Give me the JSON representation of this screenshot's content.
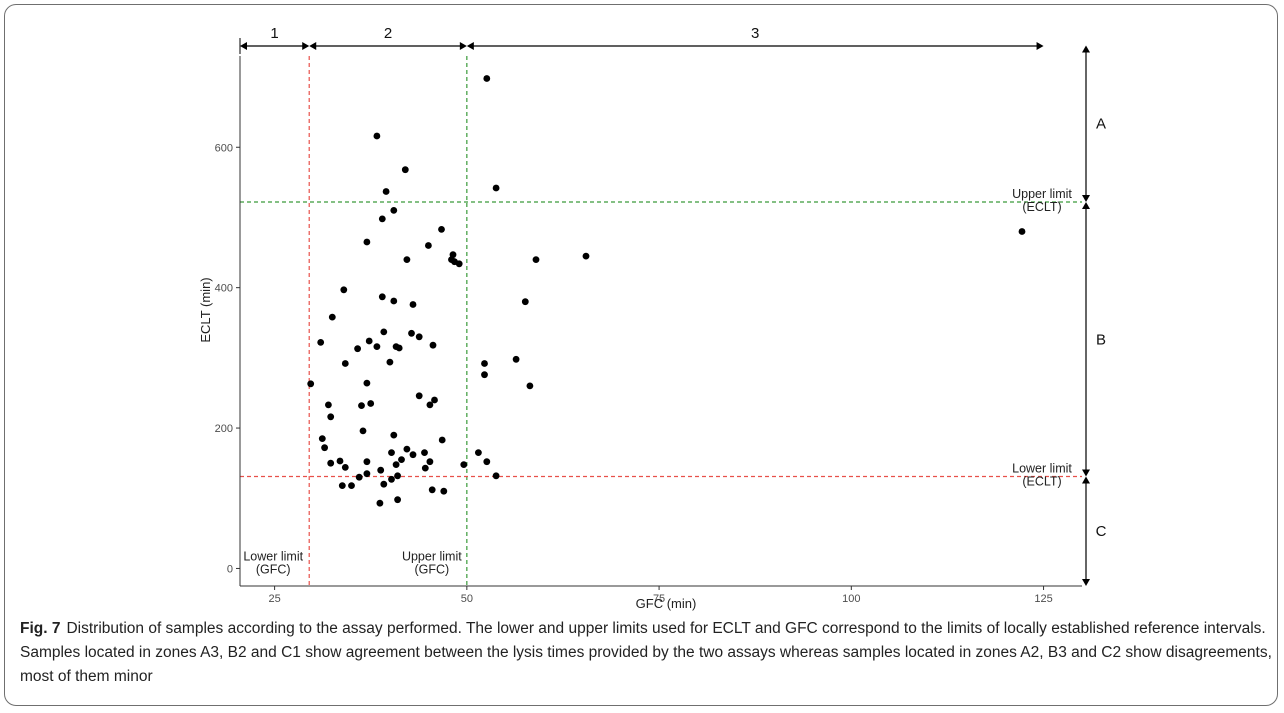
{
  "caption": {
    "label": "Fig. 7",
    "text": "Distribution of samples according to the assay performed. The lower and upper limits used for ECLT and GFC correspond to the limits of locally established reference intervals. Samples located in zones A3, B2 and C1 show agreement between the lysis times provided by the two assays whereas samples located in zones A2, B3 and C2 show disagreements, most of them minor"
  },
  "chart_data": {
    "type": "scatter",
    "xlabel": "GFC (min)",
    "ylabel": "ECLT (min)",
    "xlim": [
      20.5,
      130
    ],
    "ylim": [
      -25,
      730
    ],
    "x_ticks": [
      25,
      50,
      75,
      100,
      125
    ],
    "y_ticks": [
      0,
      200,
      400,
      600
    ],
    "grid": false,
    "colors": {
      "points": "#000000",
      "gfc_lower_line": "#e8504a",
      "gfc_upper_line": "#3a9a3a",
      "eclt_upper_line": "#3a9a3a",
      "eclt_lower_line": "#e8504a"
    },
    "reference_lines": {
      "gfc_lower": 29.5,
      "gfc_upper": 50,
      "eclt_upper": 522,
      "eclt_lower": 131
    },
    "annotations": [
      {
        "id": "gfc_lower",
        "line1": "Lower limit",
        "line2": "(GFC)"
      },
      {
        "id": "gfc_upper",
        "line1": "Upper limit",
        "line2": "(GFC)"
      },
      {
        "id": "eclt_upper",
        "line1": "Upper limit",
        "line2": "(ECLT)"
      },
      {
        "id": "eclt_lower",
        "line1": "Lower limit",
        "line2": "(ECLT)"
      }
    ],
    "zones_x": [
      {
        "label": "1",
        "from": 20.5,
        "to": 29.5
      },
      {
        "label": "2",
        "from": 29.5,
        "to": 50
      },
      {
        "label": "3",
        "from": 50,
        "to": 125
      }
    ],
    "zones_y": [
      {
        "label": "A",
        "from": 522,
        "to": 745
      },
      {
        "label": "B",
        "from": 131,
        "to": 522
      },
      {
        "label": "C",
        "from": -25,
        "to": 131
      }
    ],
    "points": [
      [
        29.7,
        263
      ],
      [
        31,
        322
      ],
      [
        31.2,
        185
      ],
      [
        31.5,
        172
      ],
      [
        32,
        233
      ],
      [
        32.3,
        216
      ],
      [
        32.3,
        150
      ],
      [
        32.5,
        358
      ],
      [
        33.5,
        153
      ],
      [
        33.8,
        118
      ],
      [
        34,
        397
      ],
      [
        34.2,
        292
      ],
      [
        34.2,
        144
      ],
      [
        35,
        118
      ],
      [
        35.8,
        313
      ],
      [
        36,
        130
      ],
      [
        36.3,
        232
      ],
      [
        36.5,
        196
      ],
      [
        37,
        465
      ],
      [
        37,
        264
      ],
      [
        37,
        152
      ],
      [
        37,
        135
      ],
      [
        37.3,
        324
      ],
      [
        37.5,
        235
      ],
      [
        38.3,
        616
      ],
      [
        38.3,
        316
      ],
      [
        38.7,
        93
      ],
      [
        38.8,
        140
      ],
      [
        39,
        498
      ],
      [
        39,
        387
      ],
      [
        39.2,
        337
      ],
      [
        39.2,
        120
      ],
      [
        39.5,
        537
      ],
      [
        40,
        294
      ],
      [
        40.2,
        127
      ],
      [
        40.2,
        165
      ],
      [
        40.5,
        381
      ],
      [
        40.5,
        510
      ],
      [
        40.5,
        190
      ],
      [
        40.8,
        316
      ],
      [
        40.8,
        148
      ],
      [
        41,
        98
      ],
      [
        41,
        132
      ],
      [
        41.2,
        314
      ],
      [
        41.5,
        155
      ],
      [
        42,
        568
      ],
      [
        42.2,
        440
      ],
      [
        42.2,
        170
      ],
      [
        42.8,
        335
      ],
      [
        43,
        376
      ],
      [
        43,
        162
      ],
      [
        43.8,
        330
      ],
      [
        43.8,
        246
      ],
      [
        44.5,
        165
      ],
      [
        44.6,
        143
      ],
      [
        45,
        460
      ],
      [
        45.2,
        233
      ],
      [
        45.2,
        152
      ],
      [
        45.5,
        112
      ],
      [
        45.6,
        318
      ],
      [
        45.8,
        240
      ],
      [
        46.7,
        483
      ],
      [
        46.8,
        183
      ],
      [
        47,
        110
      ],
      [
        48,
        440
      ],
      [
        48.2,
        447
      ],
      [
        48.4,
        437
      ],
      [
        49,
        434
      ],
      [
        49.6,
        148
      ],
      [
        51.5,
        165
      ],
      [
        52.3,
        292
      ],
      [
        52.3,
        276
      ],
      [
        52.6,
        152
      ],
      [
        52.6,
        698
      ],
      [
        53.8,
        542
      ],
      [
        53.8,
        132
      ],
      [
        56.4,
        298
      ],
      [
        57.6,
        380
      ],
      [
        58.2,
        260
      ],
      [
        59,
        440
      ],
      [
        65.5,
        445
      ],
      [
        122.2,
        480
      ]
    ]
  }
}
